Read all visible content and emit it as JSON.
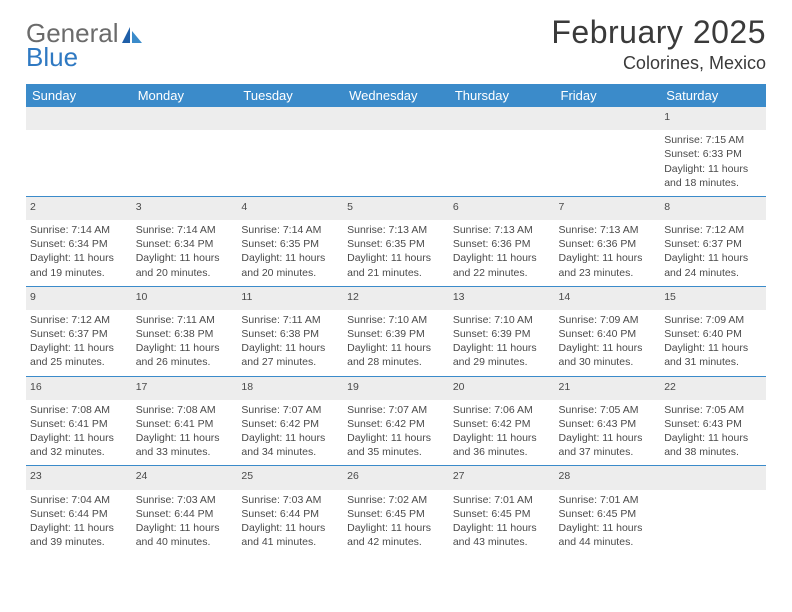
{
  "logo": {
    "line1": "General",
    "line2": "Blue"
  },
  "title": "February 2025",
  "location": "Colorines, Mexico",
  "colors": {
    "header_bg": "#3b8bca",
    "header_fg": "#ffffff",
    "daynum_bg": "#ededed",
    "rule": "#3b8bca",
    "text": "#4a4a4a",
    "logo_grey": "#6b6b6b",
    "logo_blue": "#2f79c2"
  },
  "weekdays": [
    "Sunday",
    "Monday",
    "Tuesday",
    "Wednesday",
    "Thursday",
    "Friday",
    "Saturday"
  ],
  "weeks": [
    [
      {
        "n": "",
        "sr": "",
        "ss": "",
        "dl": ""
      },
      {
        "n": "",
        "sr": "",
        "ss": "",
        "dl": ""
      },
      {
        "n": "",
        "sr": "",
        "ss": "",
        "dl": ""
      },
      {
        "n": "",
        "sr": "",
        "ss": "",
        "dl": ""
      },
      {
        "n": "",
        "sr": "",
        "ss": "",
        "dl": ""
      },
      {
        "n": "",
        "sr": "",
        "ss": "",
        "dl": ""
      },
      {
        "n": "1",
        "sr": "Sunrise: 7:15 AM",
        "ss": "Sunset: 6:33 PM",
        "dl": "Daylight: 11 hours and 18 minutes."
      }
    ],
    [
      {
        "n": "2",
        "sr": "Sunrise: 7:14 AM",
        "ss": "Sunset: 6:34 PM",
        "dl": "Daylight: 11 hours and 19 minutes."
      },
      {
        "n": "3",
        "sr": "Sunrise: 7:14 AM",
        "ss": "Sunset: 6:34 PM",
        "dl": "Daylight: 11 hours and 20 minutes."
      },
      {
        "n": "4",
        "sr": "Sunrise: 7:14 AM",
        "ss": "Sunset: 6:35 PM",
        "dl": "Daylight: 11 hours and 20 minutes."
      },
      {
        "n": "5",
        "sr": "Sunrise: 7:13 AM",
        "ss": "Sunset: 6:35 PM",
        "dl": "Daylight: 11 hours and 21 minutes."
      },
      {
        "n": "6",
        "sr": "Sunrise: 7:13 AM",
        "ss": "Sunset: 6:36 PM",
        "dl": "Daylight: 11 hours and 22 minutes."
      },
      {
        "n": "7",
        "sr": "Sunrise: 7:13 AM",
        "ss": "Sunset: 6:36 PM",
        "dl": "Daylight: 11 hours and 23 minutes."
      },
      {
        "n": "8",
        "sr": "Sunrise: 7:12 AM",
        "ss": "Sunset: 6:37 PM",
        "dl": "Daylight: 11 hours and 24 minutes."
      }
    ],
    [
      {
        "n": "9",
        "sr": "Sunrise: 7:12 AM",
        "ss": "Sunset: 6:37 PM",
        "dl": "Daylight: 11 hours and 25 minutes."
      },
      {
        "n": "10",
        "sr": "Sunrise: 7:11 AM",
        "ss": "Sunset: 6:38 PM",
        "dl": "Daylight: 11 hours and 26 minutes."
      },
      {
        "n": "11",
        "sr": "Sunrise: 7:11 AM",
        "ss": "Sunset: 6:38 PM",
        "dl": "Daylight: 11 hours and 27 minutes."
      },
      {
        "n": "12",
        "sr": "Sunrise: 7:10 AM",
        "ss": "Sunset: 6:39 PM",
        "dl": "Daylight: 11 hours and 28 minutes."
      },
      {
        "n": "13",
        "sr": "Sunrise: 7:10 AM",
        "ss": "Sunset: 6:39 PM",
        "dl": "Daylight: 11 hours and 29 minutes."
      },
      {
        "n": "14",
        "sr": "Sunrise: 7:09 AM",
        "ss": "Sunset: 6:40 PM",
        "dl": "Daylight: 11 hours and 30 minutes."
      },
      {
        "n": "15",
        "sr": "Sunrise: 7:09 AM",
        "ss": "Sunset: 6:40 PM",
        "dl": "Daylight: 11 hours and 31 minutes."
      }
    ],
    [
      {
        "n": "16",
        "sr": "Sunrise: 7:08 AM",
        "ss": "Sunset: 6:41 PM",
        "dl": "Daylight: 11 hours and 32 minutes."
      },
      {
        "n": "17",
        "sr": "Sunrise: 7:08 AM",
        "ss": "Sunset: 6:41 PM",
        "dl": "Daylight: 11 hours and 33 minutes."
      },
      {
        "n": "18",
        "sr": "Sunrise: 7:07 AM",
        "ss": "Sunset: 6:42 PM",
        "dl": "Daylight: 11 hours and 34 minutes."
      },
      {
        "n": "19",
        "sr": "Sunrise: 7:07 AM",
        "ss": "Sunset: 6:42 PM",
        "dl": "Daylight: 11 hours and 35 minutes."
      },
      {
        "n": "20",
        "sr": "Sunrise: 7:06 AM",
        "ss": "Sunset: 6:42 PM",
        "dl": "Daylight: 11 hours and 36 minutes."
      },
      {
        "n": "21",
        "sr": "Sunrise: 7:05 AM",
        "ss": "Sunset: 6:43 PM",
        "dl": "Daylight: 11 hours and 37 minutes."
      },
      {
        "n": "22",
        "sr": "Sunrise: 7:05 AM",
        "ss": "Sunset: 6:43 PM",
        "dl": "Daylight: 11 hours and 38 minutes."
      }
    ],
    [
      {
        "n": "23",
        "sr": "Sunrise: 7:04 AM",
        "ss": "Sunset: 6:44 PM",
        "dl": "Daylight: 11 hours and 39 minutes."
      },
      {
        "n": "24",
        "sr": "Sunrise: 7:03 AM",
        "ss": "Sunset: 6:44 PM",
        "dl": "Daylight: 11 hours and 40 minutes."
      },
      {
        "n": "25",
        "sr": "Sunrise: 7:03 AM",
        "ss": "Sunset: 6:44 PM",
        "dl": "Daylight: 11 hours and 41 minutes."
      },
      {
        "n": "26",
        "sr": "Sunrise: 7:02 AM",
        "ss": "Sunset: 6:45 PM",
        "dl": "Daylight: 11 hours and 42 minutes."
      },
      {
        "n": "27",
        "sr": "Sunrise: 7:01 AM",
        "ss": "Sunset: 6:45 PM",
        "dl": "Daylight: 11 hours and 43 minutes."
      },
      {
        "n": "28",
        "sr": "Sunrise: 7:01 AM",
        "ss": "Sunset: 6:45 PM",
        "dl": "Daylight: 11 hours and 44 minutes."
      },
      {
        "n": "",
        "sr": "",
        "ss": "",
        "dl": ""
      }
    ]
  ]
}
